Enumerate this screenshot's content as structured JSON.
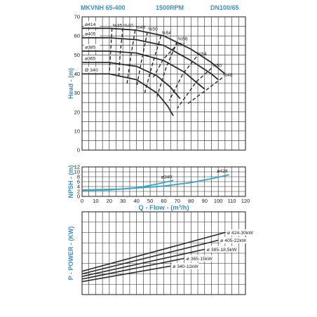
{
  "header": {
    "model": "MKVNH 65-400",
    "speed": "1500RPM",
    "size": "DN100/65"
  },
  "chart_data": [
    {
      "type": "line",
      "id": "head",
      "ylabel": "Head - (m)",
      "xlim": [
        0,
        120
      ],
      "ylim": [
        0,
        70
      ],
      "yticks": [
        0,
        10,
        20,
        30,
        40,
        50,
        60,
        70
      ],
      "grid": true,
      "series": [
        {
          "name": "ø414",
          "points": [
            [
              0,
              64
            ],
            [
              20,
              64
            ],
            [
              40,
              63
            ],
            [
              60,
              60
            ],
            [
              80,
              53
            ],
            [
              95,
              46
            ],
            [
              105,
              40
            ]
          ]
        },
        {
          "name": "ø405",
          "points": [
            [
              0,
              59
            ],
            [
              20,
              59
            ],
            [
              40,
              58
            ],
            [
              60,
              55
            ],
            [
              80,
              47
            ],
            [
              95,
              40
            ],
            [
              100,
              37
            ]
          ]
        },
        {
          "name": "ø385",
          "points": [
            [
              0,
              52
            ],
            [
              20,
              52
            ],
            [
              40,
              51
            ],
            [
              60,
              47
            ],
            [
              75,
              41
            ],
            [
              85,
              35
            ],
            [
              90,
              32
            ]
          ]
        },
        {
          "name": "ø365",
          "points": [
            [
              0,
              46
            ],
            [
              20,
              46
            ],
            [
              40,
              44
            ],
            [
              55,
              39
            ],
            [
              65,
              33
            ],
            [
              72,
              27
            ]
          ]
        },
        {
          "name": "Ø 340",
          "points": [
            [
              0,
              40
            ],
            [
              20,
              40
            ],
            [
              40,
              37
            ],
            [
              55,
              30
            ],
            [
              63,
              23
            ],
            [
              67,
              18
            ]
          ]
        }
      ],
      "efficiency_lines": [
        {
          "name": "%35",
          "points": [
            [
              22,
              64
            ],
            [
              21,
              52
            ],
            [
              20,
              40
            ]
          ]
        },
        {
          "name": "%40",
          "points": [
            [
              30,
              64
            ],
            [
              28,
              51
            ],
            [
              27,
              39
            ]
          ]
        },
        {
          "name": "%48",
          "points": [
            [
              39,
              63
            ],
            [
              36,
              50
            ],
            [
              33,
              35
            ]
          ]
        },
        {
          "name": "%50",
          "points": [
            [
              48,
              62
            ],
            [
              44,
              48
            ],
            [
              40,
              33
            ]
          ]
        },
        {
          "name": "%54",
          "points": [
            [
              58,
              60
            ],
            [
              52,
              46
            ],
            [
              46,
              30
            ]
          ]
        },
        {
          "name": "%56",
          "points": [
            [
              70,
              57
            ],
            [
              62,
              44
            ],
            [
              55,
              28
            ]
          ]
        },
        {
          "name": "%57",
          "points": [
            [
              68,
              54
            ],
            [
              60,
              48
            ],
            [
              52,
              38
            ]
          ]
        },
        {
          "name": "%54",
          "points": [
            [
              84,
              49
            ],
            [
              74,
              40
            ],
            [
              64,
              26
            ]
          ]
        },
        {
          "name": "%50",
          "points": [
            [
              95,
              43
            ],
            [
              84,
              36
            ],
            [
              70,
              22
            ]
          ]
        },
        {
          "name": "%48",
          "points": [
            [
              103,
              38
            ],
            [
              92,
              32
            ],
            [
              77,
              24
            ]
          ]
        }
      ]
    },
    {
      "type": "line",
      "id": "npsh",
      "ylabel": "NPSH - (m)",
      "xlabel": "Q - Flow - (m³/h)",
      "xlim": [
        0,
        120
      ],
      "ylim": [
        0,
        12
      ],
      "xticks": [
        0,
        10,
        20,
        30,
        40,
        50,
        60,
        70,
        80,
        90,
        100,
        110,
        120
      ],
      "yticks": [
        0,
        2,
        4,
        6,
        8,
        10,
        12
      ],
      "grid": true,
      "series": [
        {
          "name": "ø340",
          "points": [
            [
              0,
              2.4
            ],
            [
              20,
              2.6
            ],
            [
              40,
              3.5
            ],
            [
              55,
              5.0
            ],
            [
              67,
              6.5
            ]
          ]
        },
        {
          "name": "ø424",
          "points": [
            [
              0,
              2.6
            ],
            [
              30,
              3.0
            ],
            [
              60,
              4.2
            ],
            [
              80,
              5.6
            ],
            [
              95,
              7.2
            ],
            [
              108,
              8.8
            ]
          ]
        }
      ]
    },
    {
      "type": "line",
      "id": "power",
      "ylabel": "P - POWER - (KW)",
      "xlim": [
        0,
        120
      ],
      "ylim": [
        0,
        32
      ],
      "grid": true,
      "series": [
        {
          "name": "ø 424-30kW",
          "points": [
            [
              0,
              9
            ],
            [
              105,
              24
            ]
          ]
        },
        {
          "name": "ø 405-22kW",
          "points": [
            [
              0,
              8
            ],
            [
              100,
              21
            ]
          ]
        },
        {
          "name": "ø 385-18,5kW",
          "points": [
            [
              0,
              7
            ],
            [
              90,
              17.5
            ]
          ]
        },
        {
          "name": "ø 365-15kW",
          "points": [
            [
              0,
              6
            ],
            [
              75,
              14
            ]
          ]
        },
        {
          "name": "ø 340-11kW",
          "points": [
            [
              0,
              5
            ],
            [
              65,
              11
            ]
          ]
        }
      ]
    }
  ]
}
